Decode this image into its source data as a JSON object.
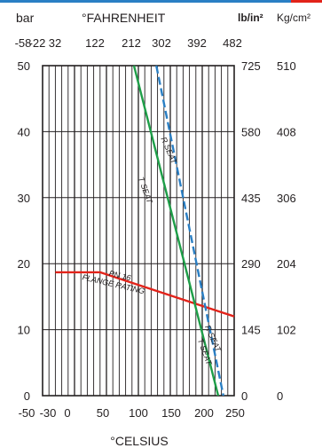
{
  "chart_data": {
    "type": "line",
    "title": "",
    "xlabel": "°CELSIUS",
    "xlabel_top": "°FAHRENHEIT",
    "ylabel_left": "bar",
    "ylabel_right_psi": "lb/in²",
    "ylabel_right_kg": "Kg/cm²",
    "xlim": [
      -50,
      250
    ],
    "ylim": [
      0,
      50
    ],
    "x_ticks": [
      "-50",
      "-30",
      "0",
      "50",
      "100",
      "150",
      "200",
      "250"
    ],
    "x_tick_values": [
      -50,
      -30,
      0,
      50,
      100,
      150,
      200,
      250
    ],
    "top_ticks": [
      "-58",
      "-22",
      "32",
      "122",
      "212",
      "302",
      "392",
      "482"
    ],
    "top_tick_values": [
      -50,
      -30,
      0,
      50,
      100,
      150,
      200,
      250
    ],
    "y_ticks_left": [
      "0",
      "10",
      "20",
      "30",
      "40",
      "50"
    ],
    "y_tick_values": [
      0,
      10,
      20,
      30,
      40,
      50
    ],
    "y_ticks_right_psi": [
      "0",
      "145",
      "290",
      "435",
      "580",
      "725"
    ],
    "y_ticks_right_kg": [
      "0",
      "102",
      "204",
      "306",
      "408",
      "510"
    ],
    "grid_x": [
      -40,
      -30,
      -20,
      -10,
      0,
      10,
      20,
      30,
      40,
      50,
      60,
      70,
      80,
      90,
      100,
      110,
      120,
      130,
      140,
      150,
      160,
      170,
      180,
      190,
      200,
      210,
      220,
      230,
      240
    ],
    "grid_y": [
      10,
      20,
      30,
      40
    ],
    "series": [
      {
        "name": "PN 16 FLANGE RATING",
        "color": "#e2231a",
        "style": "solid",
        "x": [
          -30,
          40,
          250
        ],
        "y": [
          18.7,
          18.7,
          12
        ]
      },
      {
        "name": "T SEAT",
        "color": "#1e9e48",
        "style": "solid",
        "x": [
          93,
          225
        ],
        "y": [
          50,
          0
        ]
      },
      {
        "name": "R SEAT",
        "color": "#2a7fc4",
        "style": "dashed",
        "x": [
          128,
          233
        ],
        "y": [
          50,
          0
        ]
      }
    ],
    "annotations": [
      {
        "text": "PN 16",
        "x": 70,
        "y": 17.8,
        "angle": 13
      },
      {
        "text": "FLANGE RATING",
        "x": 60,
        "y": 16.5,
        "angle": 13
      },
      {
        "text": "T SEAT",
        "x": 107,
        "y": 31,
        "angle": 70
      },
      {
        "text": "R SEAT",
        "x": 144,
        "y": 37,
        "angle": 66
      },
      {
        "text": "R SEAT",
        "x": 213,
        "y": 8.5,
        "angle": 66
      },
      {
        "text": "T SEAT",
        "x": 200,
        "y": 6.5,
        "angle": 70
      }
    ]
  }
}
